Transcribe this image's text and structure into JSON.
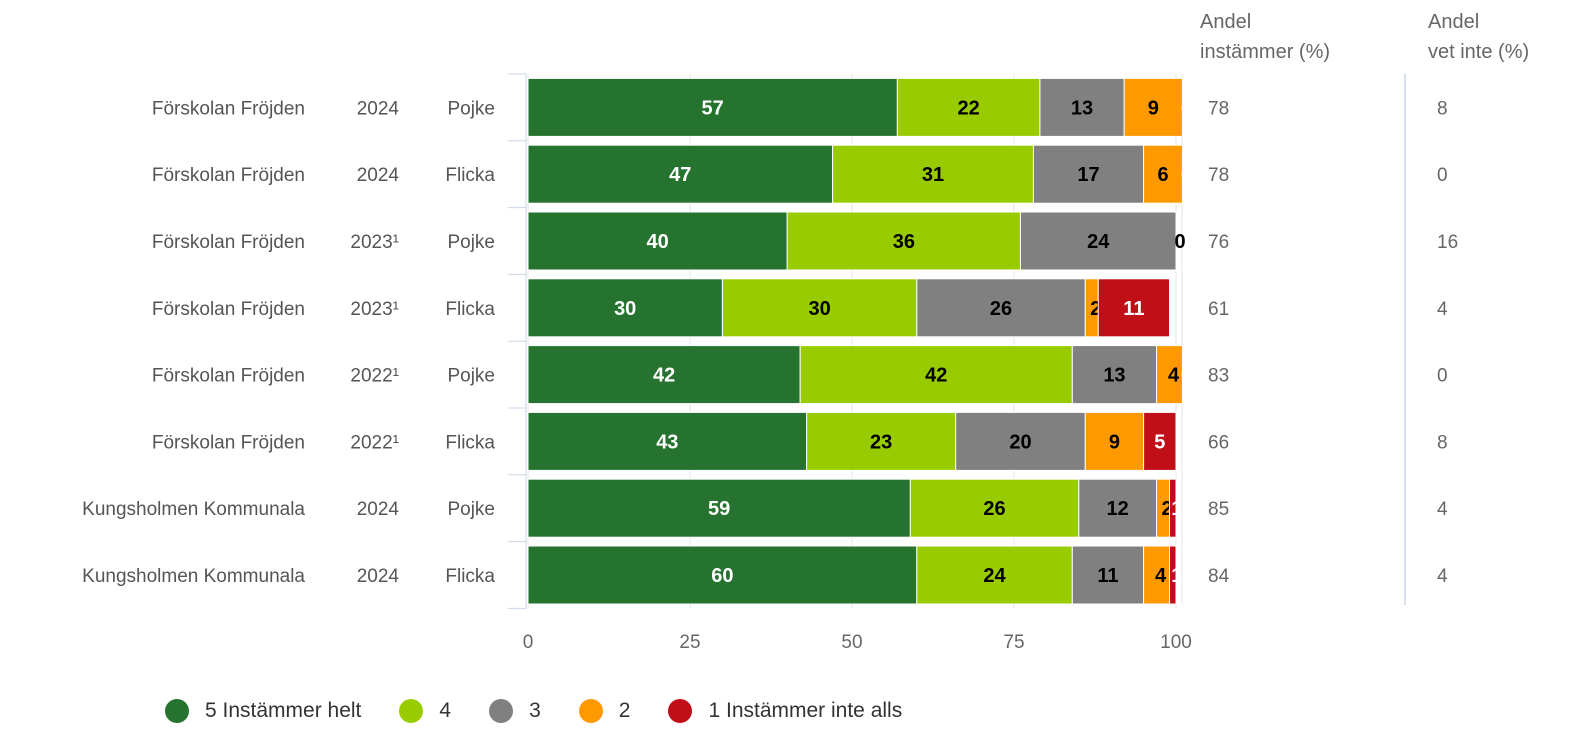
{
  "chart_data": {
    "type": "bar",
    "orientation": "horizontal",
    "stacked": true,
    "xlim": [
      0,
      100
    ],
    "xticks": [
      "0",
      "25",
      "50",
      "75",
      "100"
    ],
    "grid": true,
    "legend_position": "bottom",
    "rows": [
      {
        "school": "Förskolan Fröjden",
        "year": "2024",
        "gender": "Pojke",
        "values": [
          57,
          22,
          13,
          9,
          0
        ],
        "labels": [
          "57",
          "22",
          "13",
          "9",
          "0"
        ],
        "agree": "78",
        "dont_know": "8"
      },
      {
        "school": "Förskolan Fröjden",
        "year": "2024",
        "gender": "Flicka",
        "values": [
          47,
          31,
          17,
          6,
          0
        ],
        "labels": [
          "47",
          "31",
          "17",
          "6",
          "0"
        ],
        "agree": "78",
        "dont_know": "0"
      },
      {
        "school": "Förskolan Fröjden",
        "year": "2023¹",
        "gender": "Pojke",
        "values": [
          40,
          36,
          24,
          0,
          0
        ],
        "labels": [
          "40",
          "36",
          "24",
          "0",
          ""
        ],
        "agree": "76",
        "dont_know": "16"
      },
      {
        "school": "Förskolan Fröjden",
        "year": "2023¹",
        "gender": "Flicka",
        "values": [
          30,
          30,
          26,
          2,
          11
        ],
        "labels": [
          "30",
          "30",
          "26",
          "2",
          "11"
        ],
        "agree": "61",
        "dont_know": "4"
      },
      {
        "school": "Förskolan Fröjden",
        "year": "2022¹",
        "gender": "Pojke",
        "values": [
          42,
          42,
          13,
          4,
          0
        ],
        "labels": [
          "42",
          "42",
          "13",
          "4",
          "0"
        ],
        "agree": "83",
        "dont_know": "0"
      },
      {
        "school": "Förskolan Fröjden",
        "year": "2022¹",
        "gender": "Flicka",
        "values": [
          43,
          23,
          20,
          9,
          5
        ],
        "labels": [
          "43",
          "23",
          "20",
          "9",
          "5"
        ],
        "agree": "66",
        "dont_know": "8"
      },
      {
        "school": "Kungsholmen Kommunala",
        "year": "2024",
        "gender": "Pojke",
        "values": [
          59,
          26,
          12,
          2,
          1
        ],
        "labels": [
          "59",
          "26",
          "12",
          "2",
          "1"
        ],
        "agree": "85",
        "dont_know": "4"
      },
      {
        "school": "Kungsholmen Kommunala",
        "year": "2024",
        "gender": "Flicka",
        "values": [
          60,
          24,
          11,
          4,
          1
        ],
        "labels": [
          "60",
          "24",
          "11",
          "4",
          "1"
        ],
        "agree": "84",
        "dont_know": "4"
      }
    ],
    "series": [
      {
        "name": "5 Instämmer helt",
        "color": "#267330",
        "label_color": "#ffffff"
      },
      {
        "name": "4",
        "color": "#99cc00",
        "label_color": "#000000"
      },
      {
        "name": "3",
        "color": "#808080",
        "label_color": "#000000"
      },
      {
        "name": "2",
        "color": "#ff9900",
        "label_color": "#000000"
      },
      {
        "name": "1 Instämmer inte alls",
        "color": "#c00f17",
        "label_color": "#ffffff"
      }
    ],
    "side_columns": [
      {
        "header": [
          "Andel",
          "instämmer (%)"
        ],
        "key": "agree"
      },
      {
        "header": [
          "Andel",
          "vet inte (%)"
        ],
        "key": "dont_know"
      }
    ]
  }
}
